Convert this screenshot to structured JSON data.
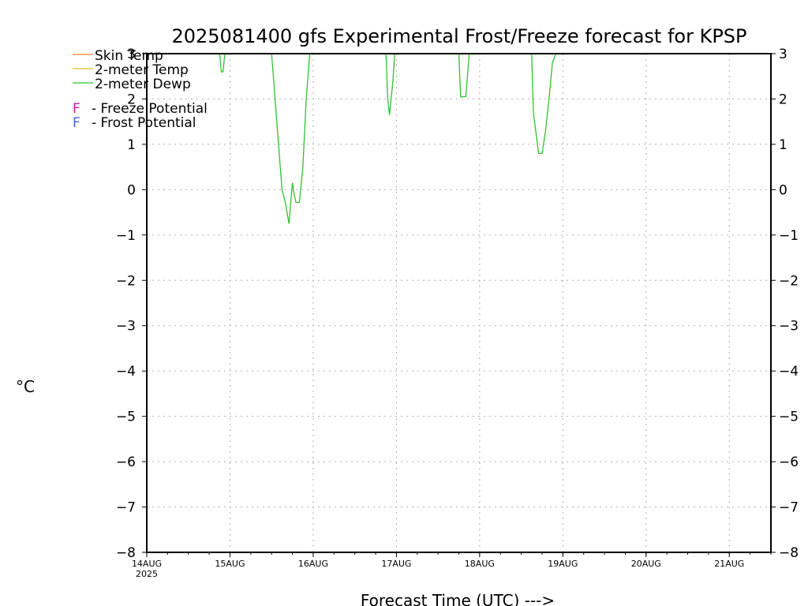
{
  "chart_data": {
    "type": "line",
    "title": "2025081400 gfs Experimental Frost/Freeze forecast for KPSP",
    "xlabel": "Forecast Time (UTC) --->",
    "ylabel": "°C",
    "ylim": [
      -8,
      3
    ],
    "xlim": [
      "2025-08-14T00:00",
      "2025-08-21T12:00"
    ],
    "yticks": [
      "3",
      "2",
      "1",
      "0",
      "-1",
      "-2",
      "-3",
      "-4",
      "-5",
      "-6",
      "-7",
      "-8"
    ],
    "xtick_labels": [
      "14AUG",
      "15AUG",
      "16AUG",
      "17AUG",
      "18AUG",
      "19AUG",
      "20AUG",
      "21AUG"
    ],
    "xtick_year": "2025",
    "grid": true,
    "legend": {
      "placement": "top-left",
      "series_entries": [
        {
          "label": "Skin Temp",
          "color": "#f08030"
        },
        {
          "label": "2-meter Temp",
          "color": "#e0c020"
        },
        {
          "label": "2-meter Dewp",
          "color": "#30c030"
        }
      ],
      "marker_entries": [
        {
          "marker": "F",
          "label": "- Freeze Potential",
          "color": "#c020a0"
        },
        {
          "marker": "F",
          "label": "- Frost Potential",
          "color": "#4060e0"
        }
      ]
    },
    "series": [
      {
        "name": "2-meter Dewp",
        "color": "#30c030",
        "segments": [
          [
            [
              "2025-08-14T21:00",
              3.0
            ],
            [
              "2025-08-14T21:30",
              2.6
            ],
            [
              "2025-08-14T22:00",
              2.6
            ],
            [
              "2025-08-14T22:30",
              3.0
            ]
          ],
          [
            [
              "2025-08-15T12:00",
              3.0
            ],
            [
              "2025-08-15T13:00",
              2.0
            ],
            [
              "2025-08-15T14:00",
              1.0
            ],
            [
              "2025-08-15T15:00",
              0.0
            ],
            [
              "2025-08-15T16:00",
              -0.3
            ],
            [
              "2025-08-15T17:00",
              -0.75
            ],
            [
              "2025-08-15T18:00",
              0.15
            ],
            [
              "2025-08-15T18:30",
              -0.1
            ],
            [
              "2025-08-15T19:00",
              -0.28
            ],
            [
              "2025-08-15T20:00",
              -0.28
            ],
            [
              "2025-08-15T21:00",
              0.5
            ],
            [
              "2025-08-15T22:00",
              2.0
            ],
            [
              "2025-08-15T23:00",
              3.0
            ]
          ],
          [
            [
              "2025-08-16T21:00",
              3.0
            ],
            [
              "2025-08-16T21:30",
              2.0
            ],
            [
              "2025-08-16T22:00",
              1.65
            ],
            [
              "2025-08-16T23:00",
              2.4
            ],
            [
              "2025-08-16T23:30",
              3.0
            ]
          ],
          [
            [
              "2025-08-17T18:00",
              3.0
            ],
            [
              "2025-08-17T18:30",
              2.05
            ],
            [
              "2025-08-17T20:00",
              2.05
            ],
            [
              "2025-08-17T21:00",
              3.0
            ]
          ],
          [
            [
              "2025-08-18T15:00",
              3.0
            ],
            [
              "2025-08-18T15:30",
              1.7
            ],
            [
              "2025-08-18T17:00",
              0.8
            ],
            [
              "2025-08-18T18:00",
              0.8
            ],
            [
              "2025-08-18T19:00",
              1.3
            ],
            [
              "2025-08-18T20:00",
              2.0
            ],
            [
              "2025-08-18T21:00",
              2.8
            ],
            [
              "2025-08-18T22:00",
              3.0
            ]
          ]
        ]
      }
    ]
  }
}
